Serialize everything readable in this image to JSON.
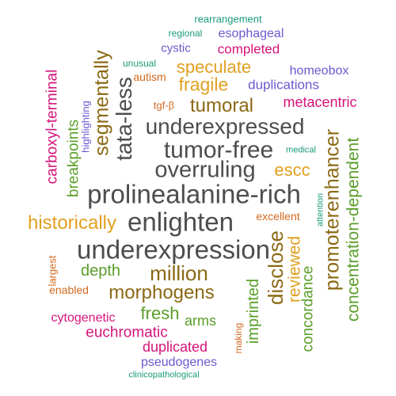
{
  "colors": {
    "gray": "#4d4d4d",
    "brown": "#8b6914",
    "gold": "#e0a020",
    "green": "#5a9e2a",
    "magenta": "#d4147a",
    "purple": "#6a5acd",
    "orange": "#d2691e",
    "teal": "#1a9a7a"
  },
  "words": [
    "rearrangement",
    "regional",
    "esophageal",
    "cystic",
    "completed",
    "unusual",
    "speculate",
    "homeobox",
    "autism",
    "fragile",
    "duplications",
    "tgf-β",
    "tumoral",
    "metacentric",
    "underexpressed",
    "tumor-free",
    "medical",
    "overruling",
    "escc",
    "prolinealanine-rich",
    "excellent",
    "historically",
    "enlighten",
    "underexpression",
    "largest",
    "depth",
    "million",
    "enabled",
    "morphogens",
    "fresh",
    "arms",
    "cytogenetic",
    "euchromatic",
    "making",
    "duplicated",
    "pseudogenes",
    "clinicopathological",
    "carboxyl-terminal",
    "breakpoints",
    "highlighting",
    "segmentally",
    "tata-less",
    "attention",
    "disclose",
    "reviewed",
    "imprinted",
    "concordance",
    "promoterenhancer",
    "concentration-dependent"
  ]
}
